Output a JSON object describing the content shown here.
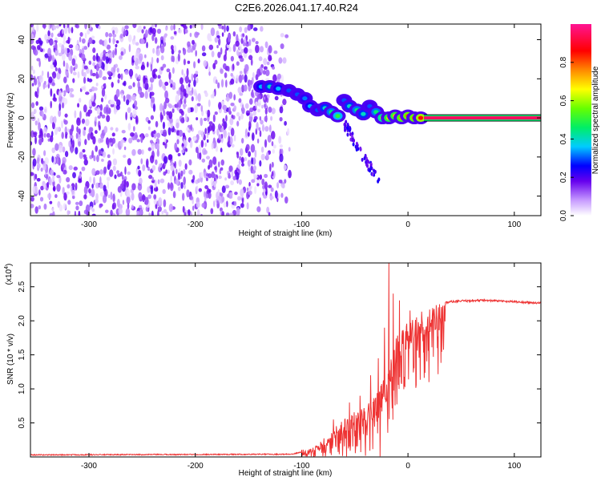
{
  "title": "C2E6.2026.041.17.40.R24",
  "chart_data": [
    {
      "type": "heatmap",
      "name": "spectrogram",
      "xlabel": "Height of straight line (km)",
      "ylabel": "Frequency (Hz)",
      "xlim": [
        -355,
        125
      ],
      "ylim": [
        -50,
        48
      ],
      "xticks": [
        -300,
        -200,
        -100,
        0,
        100
      ],
      "xtick_labels": [
        "-300",
        "-200",
        "-100",
        "0",
        "100"
      ],
      "yticks": [
        -40,
        -20,
        0,
        20,
        40
      ],
      "ytick_labels": [
        "-40",
        "-20",
        "0",
        "20",
        "40"
      ],
      "noise_region": {
        "x": [
          -355,
          -110
        ],
        "amplitude": [
          0.02,
          0.2
        ]
      },
      "blobs": [
        {
          "x": -138,
          "y": 16,
          "amp": 0.35
        },
        {
          "x": -130,
          "y": 16,
          "amp": 0.4
        },
        {
          "x": -122,
          "y": 15,
          "amp": 0.35
        },
        {
          "x": -112,
          "y": 14,
          "amp": 0.3
        },
        {
          "x": -104,
          "y": 12,
          "amp": 0.3
        },
        {
          "x": -97,
          "y": 10,
          "amp": 0.32
        },
        {
          "x": -92,
          "y": 6,
          "amp": 0.35
        },
        {
          "x": -85,
          "y": 4,
          "amp": 0.3
        },
        {
          "x": -78,
          "y": 5,
          "amp": 0.4
        },
        {
          "x": -72,
          "y": 3,
          "amp": 0.45
        },
        {
          "x": -66,
          "y": 1,
          "amp": 0.5
        },
        {
          "x": -60,
          "y": 9,
          "amp": 0.3
        },
        {
          "x": -55,
          "y": 6,
          "amp": 0.4
        },
        {
          "x": -48,
          "y": 4,
          "amp": 0.45
        },
        {
          "x": -42,
          "y": 2,
          "amp": 0.4
        },
        {
          "x": -36,
          "y": 6,
          "amp": 0.3
        },
        {
          "x": -30,
          "y": 3,
          "amp": 0.45
        },
        {
          "x": -24,
          "y": 0,
          "amp": 0.6
        },
        {
          "x": -18,
          "y": 0,
          "amp": 0.7
        },
        {
          "x": -12,
          "y": 1,
          "amp": 0.72
        },
        {
          "x": -6,
          "y": 0,
          "amp": 0.75
        },
        {
          "x": 0,
          "y": 1,
          "amp": 0.8
        },
        {
          "x": 6,
          "y": 0,
          "amp": 0.8
        },
        {
          "x": 12,
          "y": 0,
          "amp": 0.85
        }
      ],
      "tail": {
        "x": [
          -60,
          -25
        ],
        "y": [
          -3,
          -35
        ],
        "amp": 0.15
      },
      "carrier": {
        "x": [
          15,
          125
        ],
        "y": 0,
        "amp": 0.95
      },
      "colorbar": {
        "label": "Normalized spectral amplitude",
        "range": [
          0,
          1
        ],
        "ticks": [
          0.0,
          0.2,
          0.4,
          0.6,
          0.8
        ],
        "tick_labels": [
          "0.0",
          "0.2",
          "0.4",
          "0.6",
          "0.8"
        ]
      }
    },
    {
      "type": "line",
      "name": "snr",
      "xlabel": "Height of straight line (km)",
      "ylabel": "SNR (10 * v/v)",
      "multiplier_label": "(x10",
      "multiplier_exp": "4",
      "multiplier_close": ")",
      "xlim": [
        -355,
        125
      ],
      "ylim": [
        0,
        2.85
      ],
      "xticks": [
        -300,
        -200,
        -100,
        0,
        100
      ],
      "xtick_labels": [
        "-300",
        "-200",
        "-100",
        "0",
        "100"
      ],
      "yticks": [
        0.5,
        1.0,
        1.5,
        2.0,
        2.5
      ],
      "ytick_labels": [
        "0.5",
        "1.0",
        "1.5",
        "2.0",
        "2.5"
      ],
      "color": "#ee3333",
      "envelope": {
        "x": [
          -355,
          -110,
          -90,
          -75,
          -60,
          -50,
          -40,
          -30,
          -25,
          -20,
          -15,
          -10,
          -5,
          0,
          5,
          10,
          20,
          30,
          40,
          50,
          70,
          90,
          110,
          125
        ],
        "y": [
          0.03,
          0.04,
          0.1,
          0.3,
          0.55,
          0.65,
          0.75,
          0.9,
          1.1,
          1.25,
          1.5,
          1.8,
          1.9,
          2.0,
          2.05,
          2.1,
          2.2,
          2.25,
          2.28,
          2.29,
          2.3,
          2.29,
          2.27,
          2.26
        ]
      },
      "peaks": [
        {
          "x": -18,
          "y": 2.85
        },
        {
          "x": -14,
          "y": 2.4
        },
        {
          "x": -22,
          "y": 1.9
        },
        {
          "x": -28,
          "y": 1.45
        },
        {
          "x": -35,
          "y": 1.2
        },
        {
          "x": -45,
          "y": 0.9
        },
        {
          "x": -55,
          "y": 0.8
        },
        {
          "x": -70,
          "y": 0.55
        },
        {
          "x": -8,
          "y": 2.3
        },
        {
          "x": 2,
          "y": 2.15
        },
        {
          "x": 8,
          "y": 2.05
        }
      ]
    }
  ]
}
